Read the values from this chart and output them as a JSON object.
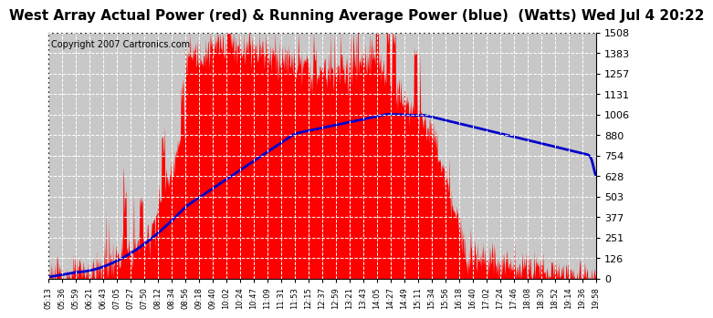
{
  "title": "West Array Actual Power (red) & Running Average Power (blue)  (Watts) Wed Jul 4 20:22",
  "copyright": "Copyright 2007 Cartronics.com",
  "ylabel_right_ticks": [
    0.0,
    125.7,
    251.4,
    377.1,
    502.8,
    628.5,
    754.2,
    879.8,
    1005.5,
    1131.2,
    1256.9,
    1382.6,
    1508.3
  ],
  "ymax": 1508.3,
  "ymin": 0.0,
  "x_labels": [
    "05:13",
    "05:36",
    "05:59",
    "06:21",
    "06:43",
    "07:05",
    "07:27",
    "07:50",
    "08:12",
    "08:34",
    "08:56",
    "09:18",
    "09:40",
    "10:02",
    "10:24",
    "10:47",
    "11:09",
    "11:31",
    "11:53",
    "12:15",
    "12:37",
    "12:59",
    "13:21",
    "13:43",
    "14:05",
    "14:27",
    "14:49",
    "15:11",
    "15:34",
    "15:56",
    "16:18",
    "16:40",
    "17:02",
    "17:24",
    "17:46",
    "18:08",
    "18:30",
    "18:52",
    "19:14",
    "19:36",
    "19:58"
  ],
  "bg_color": "#c8c8c8",
  "plot_bg_color": "#c8c8c8",
  "grid_color": "#ffffff",
  "red_color": "#ff0000",
  "blue_color": "#0000cc",
  "title_fontsize": 11,
  "title_fontsize_inner": 9,
  "copyright_fontsize": 7
}
